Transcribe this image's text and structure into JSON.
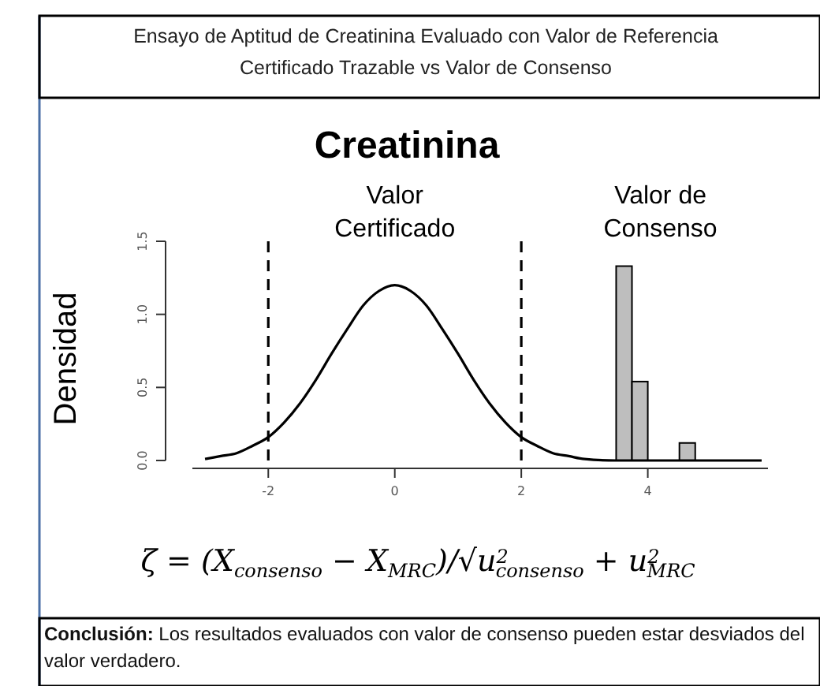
{
  "chart_data": {
    "type": "histogram",
    "title": "Ensayo de Aptitud de Creatinina Evaluado con Valor de Referencia  Certificado  Trazable  vs  Valor de Consenso",
    "subtitle": "Creatinina",
    "ylabel": "Densidad",
    "xlim": [
      -3.2,
      5.9
    ],
    "ylim": [
      0,
      1.5
    ],
    "xticks": [
      -2,
      0,
      2,
      4
    ],
    "yticks": [
      {
        "value": 0,
        "label": "0.0"
      },
      {
        "value": 0.5,
        "label": "0.5"
      },
      {
        "value": 1,
        "label": "1.0"
      },
      {
        "value": 1.5,
        "label": "1.5"
      }
    ],
    "grid": false,
    "series": [
      {
        "color": "#bebebe",
        "bins": [
          3.5,
          3.75,
          4.0,
          4.25,
          4.5,
          4.75
        ],
        "values": [
          1.33,
          0.54,
          0,
          0,
          0.12
        ]
      },
      {
        "type": "line",
        "color": "#000000",
        "x": [
          -3,
          -2.75,
          -2.5,
          -2.25,
          -2,
          -1.75,
          -1.5,
          -1.25,
          -1,
          -0.75,
          -0.5,
          -0.25,
          0,
          0.25,
          0.5,
          0.75,
          1,
          1.25,
          1.5,
          1.75,
          2,
          2.25,
          2.5,
          2.75,
          3,
          3.5,
          4,
          5,
          5.8
        ],
        "values": [
          0.01,
          0.03,
          0.05,
          0.1,
          0.16,
          0.26,
          0.39,
          0.55,
          0.73,
          0.9,
          1.06,
          1.16,
          1.2,
          1.16,
          1.06,
          0.9,
          0.73,
          0.55,
          0.39,
          0.26,
          0.16,
          0.1,
          0.05,
          0.03,
          0.01,
          0,
          0,
          0,
          0
        ]
      }
    ],
    "ref_lines": [
      {
        "axis": "x",
        "value": -2,
        "color": "#000000",
        "line_style": "dashed"
      },
      {
        "axis": "x",
        "value": 2,
        "color": "#000000",
        "line_style": "dashed"
      }
    ],
    "annotations": [
      "Valor Certificado",
      "Valor de Consenso",
      "ζ = (X$_{consenso}$ − X$_{MRC}$)/√u$^{2}$$_{consenso}$ + u$^{2}$$_{MRC}$",
      "Conclusión: Los resultados evaluados con valor de consenso pueden estar desviados del valor verdadero."
    ]
  }
}
